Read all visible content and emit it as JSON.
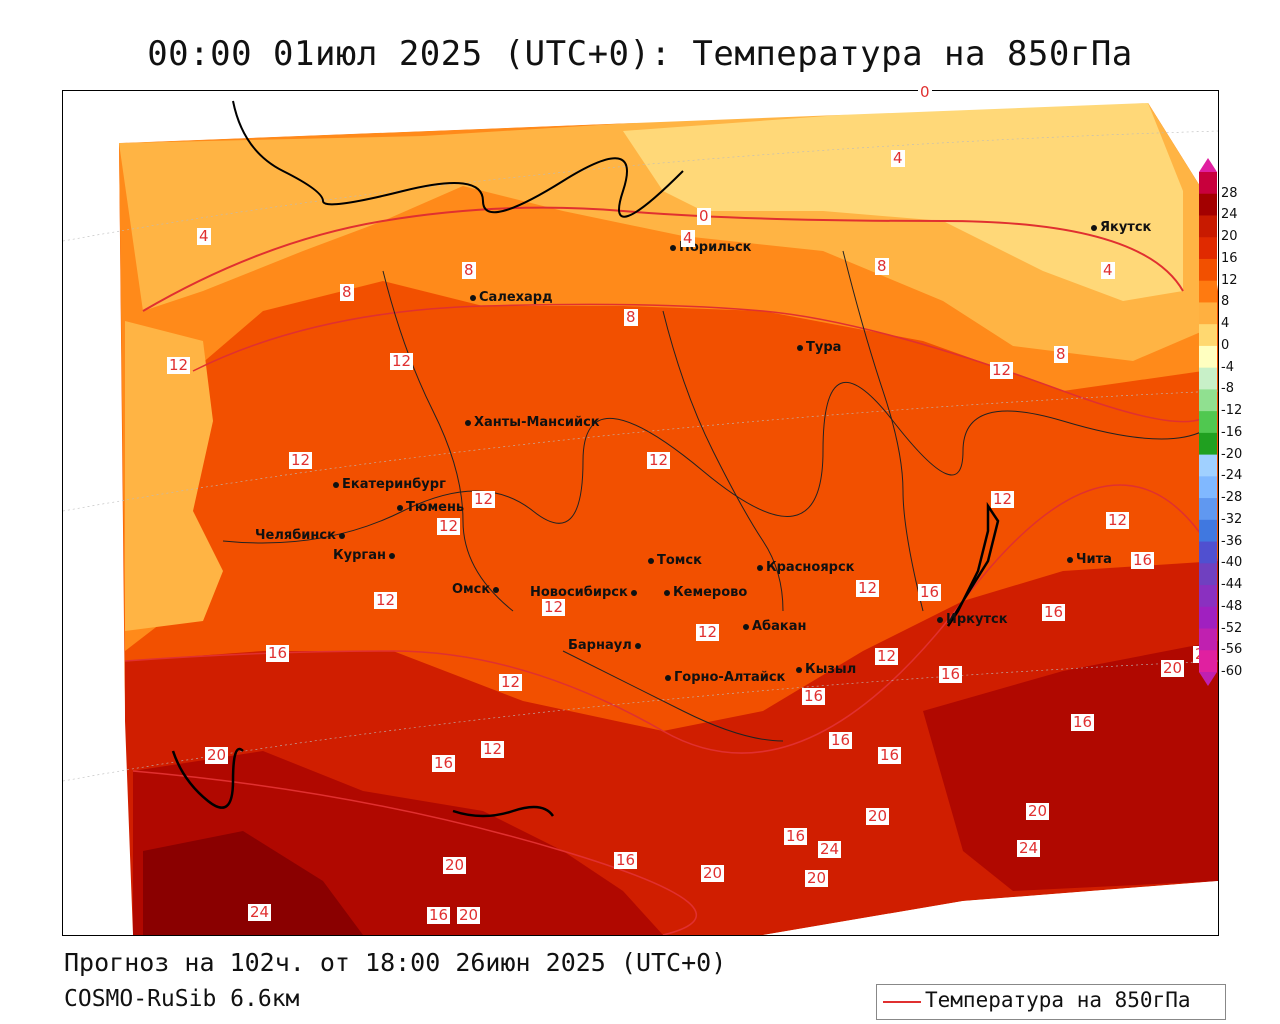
{
  "header": {
    "title": "00:00 01июл 2025 (UTC+0): Температура на 850гПа"
  },
  "footer": {
    "forecast": "Прогноз на 102ч. от 18:00 26июн 2025 (UTC+0)",
    "model": "COSMO-RuSib 6.6км",
    "legend_label": "Температура на 850гПа"
  },
  "colorbar": {
    "ticks": [
      "28",
      "24",
      "20",
      "16",
      "12",
      "8",
      "4",
      "0",
      "-4",
      "-8",
      "-12",
      "-16",
      "-20",
      "-24",
      "-28",
      "-32",
      "-36",
      "-40",
      "-44",
      "-48",
      "-52",
      "-56",
      "-60"
    ],
    "colors": [
      "#c8003c",
      "#a30000",
      "#c81a00",
      "#e02a00",
      "#f25000",
      "#ff7a10",
      "#ffb040",
      "#ffd870",
      "#ffffc0",
      "#c8f0c8",
      "#90e090",
      "#50c850",
      "#20a020",
      "#a0d0ff",
      "#80b8ff",
      "#6098f0",
      "#4078e0",
      "#5050d0",
      "#7040c0",
      "#8a30c0",
      "#a020c0",
      "#c020b0",
      "#e020a0"
    ]
  },
  "cities": [
    {
      "name": "Норильск"
    },
    {
      "name": "Якутск"
    },
    {
      "name": "Салехард"
    },
    {
      "name": "Тура"
    },
    {
      "name": "Ханты-Мансийск"
    },
    {
      "name": "Екатеринбург"
    },
    {
      "name": "Тюмень"
    },
    {
      "name": "Челябинск"
    },
    {
      "name": "Курган"
    },
    {
      "name": "Омск"
    },
    {
      "name": "Новосибирск"
    },
    {
      "name": "Томск"
    },
    {
      "name": "Кемерово"
    },
    {
      "name": "Красноярск"
    },
    {
      "name": "Абакан"
    },
    {
      "name": "Барнаул"
    },
    {
      "name": "Горно-Алтайск"
    },
    {
      "name": "Кызыл"
    },
    {
      "name": "Иркутск"
    },
    {
      "name": "Чита"
    }
  ],
  "contour_labels": [
    "0",
    "4",
    "0",
    "4",
    "4",
    "8",
    "8",
    "4",
    "8",
    "8",
    "12",
    "12",
    "12",
    "8",
    "12",
    "12",
    "12",
    "12",
    "12",
    "12",
    "12",
    "16",
    "12",
    "16",
    "16",
    "20",
    "16",
    "12",
    "16",
    "16",
    "12",
    "12",
    "12",
    "12",
    "16",
    "20",
    "16",
    "16",
    "20",
    "16",
    "20",
    "24",
    "16",
    "16",
    "20",
    "20",
    "24",
    "20",
    "24",
    "16",
    "20",
    "20"
  ]
}
